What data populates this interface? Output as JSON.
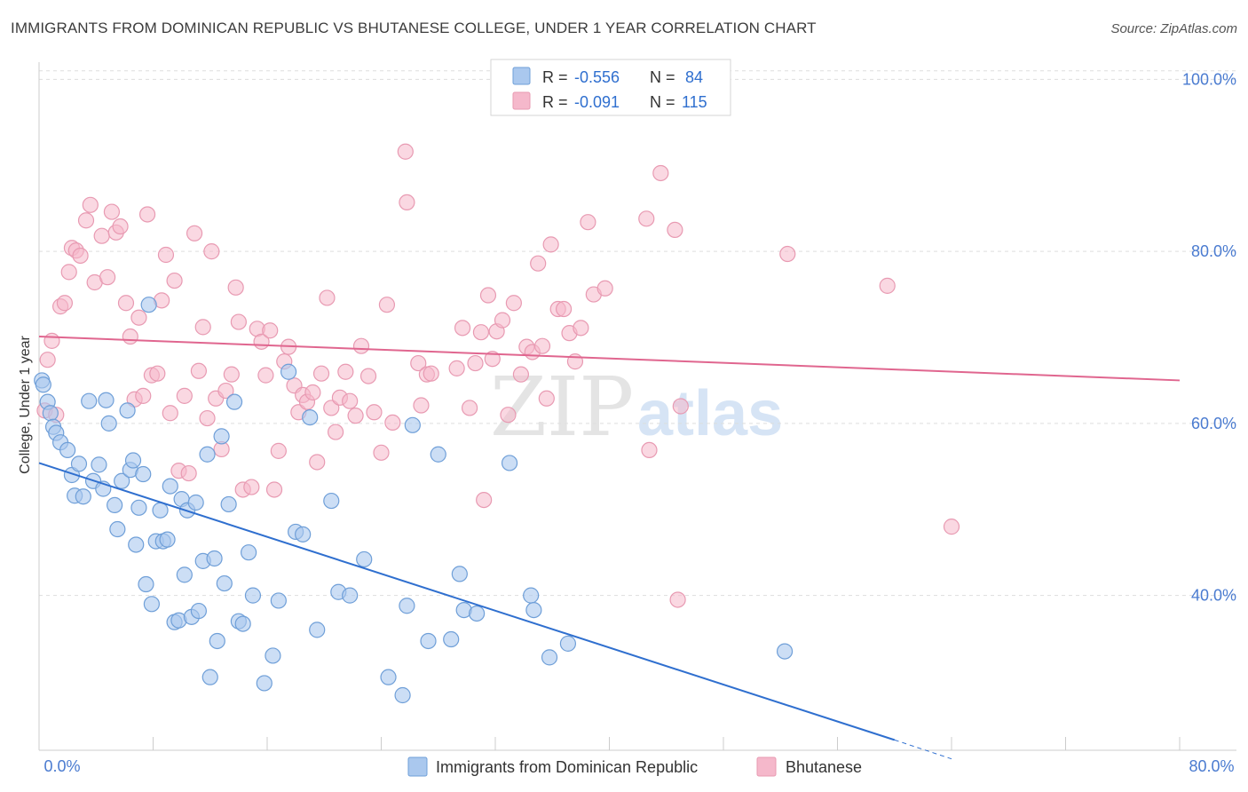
{
  "header": {
    "title": "IMMIGRANTS FROM DOMINICAN REPUBLIC VS BHUTANESE COLLEGE, UNDER 1 YEAR CORRELATION CHART",
    "source": "Source: ZipAtlas.com"
  },
  "watermark": {
    "zip": "ZIP",
    "atlas": "atlas"
  },
  "stats": {
    "blue": {
      "r_label": "R =",
      "r_value": "-0.556",
      "n_label": "N =",
      "n_value": "84"
    },
    "pink": {
      "r_label": "R =",
      "r_value": "-0.091",
      "n_label": "N =",
      "n_value": "115"
    }
  },
  "colors": {
    "blue_fill": "#aac8ee",
    "blue_stroke": "#6f9fd8",
    "blue_line": "#2f6fcf",
    "pink_fill": "#f5b8cb",
    "pink_stroke": "#e89ab2",
    "pink_line": "#e0668f",
    "tick_label": "#4a7bd0",
    "grid": "#dddddd"
  },
  "chart_data": {
    "type": "scatter",
    "title": "IMMIGRANTS FROM DOMINICAN REPUBLIC VS BHUTANESE COLLEGE, UNDER 1 YEAR CORRELATION CHART",
    "xlabel": "",
    "ylabel": "College, Under 1 year",
    "xlim": [
      0,
      80
    ],
    "ylim": [
      22,
      102
    ],
    "x_tick_labels": [
      "0.0%",
      "80.0%"
    ],
    "y_ticks": [
      40,
      60,
      80,
      100
    ],
    "y_tick_labels": [
      "40.0%",
      "60.0%",
      "80.0%",
      "100.0%"
    ],
    "grid": "horizontal dashed",
    "legend_position": "bottom",
    "series": [
      {
        "name": "Immigrants from Dominican Republic",
        "color": "#aac8ee",
        "trend": {
          "x": [
            0,
            60
          ],
          "y": [
            55.4,
            23.2
          ],
          "dashed_to": [
            64,
            21.0
          ]
        },
        "points": [
          [
            0.2,
            65.0
          ],
          [
            0.3,
            64.5
          ],
          [
            0.6,
            62.5
          ],
          [
            0.8,
            61.2
          ],
          [
            1.0,
            59.6
          ],
          [
            1.2,
            58.9
          ],
          [
            1.5,
            57.8
          ],
          [
            2.0,
            56.9
          ],
          [
            2.3,
            54.0
          ],
          [
            2.5,
            51.6
          ],
          [
            2.8,
            55.3
          ],
          [
            3.1,
            51.5
          ],
          [
            3.5,
            62.6
          ],
          [
            3.8,
            53.3
          ],
          [
            4.2,
            55.2
          ],
          [
            4.5,
            52.4
          ],
          [
            4.7,
            62.7
          ],
          [
            4.9,
            60.0
          ],
          [
            5.3,
            50.5
          ],
          [
            5.5,
            47.7
          ],
          [
            5.8,
            53.3
          ],
          [
            6.2,
            61.5
          ],
          [
            6.4,
            54.6
          ],
          [
            6.6,
            55.7
          ],
          [
            6.8,
            45.9
          ],
          [
            7.0,
            50.2
          ],
          [
            7.3,
            54.1
          ],
          [
            7.5,
            41.3
          ],
          [
            7.7,
            73.8
          ],
          [
            7.9,
            39.0
          ],
          [
            8.2,
            46.3
          ],
          [
            8.5,
            49.9
          ],
          [
            8.7,
            46.3
          ],
          [
            9.0,
            46.5
          ],
          [
            9.2,
            52.7
          ],
          [
            9.5,
            36.9
          ],
          [
            9.8,
            37.1
          ],
          [
            10.0,
            51.2
          ],
          [
            10.2,
            42.4
          ],
          [
            10.4,
            49.9
          ],
          [
            10.7,
            37.5
          ],
          [
            11.0,
            50.8
          ],
          [
            11.2,
            38.2
          ],
          [
            11.5,
            44.0
          ],
          [
            11.8,
            56.4
          ],
          [
            12.0,
            30.5
          ],
          [
            12.3,
            44.3
          ],
          [
            12.5,
            34.7
          ],
          [
            12.8,
            58.5
          ],
          [
            13.0,
            41.4
          ],
          [
            13.3,
            50.6
          ],
          [
            13.7,
            62.5
          ],
          [
            14.0,
            37.0
          ],
          [
            14.3,
            36.7
          ],
          [
            14.7,
            45.0
          ],
          [
            15.0,
            40.0
          ],
          [
            15.8,
            29.8
          ],
          [
            16.4,
            33.0
          ],
          [
            16.8,
            39.4
          ],
          [
            17.5,
            66.0
          ],
          [
            18.0,
            47.4
          ],
          [
            18.5,
            47.1
          ],
          [
            19.0,
            60.7
          ],
          [
            19.5,
            36.0
          ],
          [
            20.5,
            51.0
          ],
          [
            21.0,
            40.4
          ],
          [
            21.8,
            40.0
          ],
          [
            22.8,
            44.2
          ],
          [
            24.5,
            30.5
          ],
          [
            25.5,
            28.4
          ],
          [
            25.8,
            38.8
          ],
          [
            26.2,
            59.8
          ],
          [
            27.3,
            34.7
          ],
          [
            28.0,
            56.4
          ],
          [
            28.9,
            34.9
          ],
          [
            29.5,
            42.5
          ],
          [
            29.8,
            38.3
          ],
          [
            30.7,
            37.9
          ],
          [
            33.0,
            55.4
          ],
          [
            34.5,
            40.0
          ],
          [
            34.7,
            38.3
          ],
          [
            35.8,
            32.8
          ],
          [
            37.1,
            34.4
          ],
          [
            52.3,
            33.5
          ]
        ]
      },
      {
        "name": "Bhutanese",
        "color": "#f5b8cb",
        "trend": {
          "x": [
            0,
            80
          ],
          "y": [
            70.1,
            65.0
          ]
        },
        "points": [
          [
            0.4,
            61.5
          ],
          [
            0.6,
            67.4
          ],
          [
            0.9,
            69.6
          ],
          [
            1.2,
            61.0
          ],
          [
            1.5,
            73.6
          ],
          [
            1.8,
            74.0
          ],
          [
            2.1,
            77.6
          ],
          [
            2.3,
            80.4
          ],
          [
            2.6,
            80.1
          ],
          [
            2.9,
            79.5
          ],
          [
            3.3,
            83.6
          ],
          [
            3.6,
            85.4
          ],
          [
            3.9,
            76.4
          ],
          [
            4.4,
            81.8
          ],
          [
            4.8,
            77.0
          ],
          [
            5.1,
            84.6
          ],
          [
            5.4,
            82.2
          ],
          [
            5.7,
            82.9
          ],
          [
            6.1,
            74.0
          ],
          [
            6.4,
            70.1
          ],
          [
            6.7,
            62.8
          ],
          [
            7.0,
            72.3
          ],
          [
            7.3,
            63.2
          ],
          [
            7.6,
            84.3
          ],
          [
            7.9,
            65.6
          ],
          [
            8.3,
            65.8
          ],
          [
            8.6,
            74.3
          ],
          [
            8.9,
            79.6
          ],
          [
            9.2,
            61.2
          ],
          [
            9.5,
            76.6
          ],
          [
            9.8,
            54.5
          ],
          [
            10.2,
            63.2
          ],
          [
            10.5,
            54.2
          ],
          [
            10.9,
            82.1
          ],
          [
            11.2,
            66.1
          ],
          [
            11.5,
            71.2
          ],
          [
            11.8,
            60.6
          ],
          [
            12.1,
            80.0
          ],
          [
            12.4,
            62.9
          ],
          [
            12.8,
            57.0
          ],
          [
            13.1,
            63.8
          ],
          [
            13.5,
            65.7
          ],
          [
            13.8,
            75.8
          ],
          [
            14.0,
            71.8
          ],
          [
            14.3,
            52.3
          ],
          [
            14.9,
            52.6
          ],
          [
            15.3,
            71.0
          ],
          [
            15.6,
            69.5
          ],
          [
            15.9,
            65.6
          ],
          [
            16.2,
            70.8
          ],
          [
            16.5,
            52.3
          ],
          [
            16.8,
            56.8
          ],
          [
            17.2,
            67.2
          ],
          [
            17.5,
            68.9
          ],
          [
            17.9,
            64.4
          ],
          [
            18.2,
            61.3
          ],
          [
            18.5,
            63.3
          ],
          [
            18.8,
            62.5
          ],
          [
            19.2,
            63.6
          ],
          [
            19.5,
            55.5
          ],
          [
            19.8,
            65.8
          ],
          [
            20.2,
            74.6
          ],
          [
            20.5,
            61.8
          ],
          [
            20.8,
            59.0
          ],
          [
            21.1,
            63.0
          ],
          [
            21.5,
            66.0
          ],
          [
            21.8,
            62.6
          ],
          [
            22.2,
            60.9
          ],
          [
            22.6,
            69.0
          ],
          [
            23.1,
            65.5
          ],
          [
            23.5,
            61.3
          ],
          [
            24.0,
            56.6
          ],
          [
            24.4,
            73.8
          ],
          [
            24.8,
            60.1
          ],
          [
            25.7,
            91.6
          ],
          [
            25.8,
            85.7
          ],
          [
            26.6,
            67.0
          ],
          [
            26.8,
            62.1
          ],
          [
            27.2,
            65.7
          ],
          [
            27.5,
            65.8
          ],
          [
            29.3,
            66.4
          ],
          [
            29.7,
            71.1
          ],
          [
            30.2,
            61.8
          ],
          [
            30.6,
            67.0
          ],
          [
            31.0,
            70.6
          ],
          [
            31.2,
            51.1
          ],
          [
            31.5,
            74.9
          ],
          [
            31.8,
            67.5
          ],
          [
            32.1,
            70.7
          ],
          [
            32.5,
            72.0
          ],
          [
            32.9,
            61.0
          ],
          [
            33.3,
            74.0
          ],
          [
            33.8,
            65.7
          ],
          [
            34.2,
            68.9
          ],
          [
            34.6,
            68.3
          ],
          [
            35.0,
            78.6
          ],
          [
            35.3,
            69.0
          ],
          [
            35.6,
            62.9
          ],
          [
            35.9,
            80.8
          ],
          [
            36.4,
            73.3
          ],
          [
            36.8,
            73.3
          ],
          [
            37.2,
            70.5
          ],
          [
            37.6,
            67.2
          ],
          [
            38.0,
            71.1
          ],
          [
            38.5,
            83.4
          ],
          [
            38.9,
            75.0
          ],
          [
            39.7,
            75.7
          ],
          [
            42.6,
            83.8
          ],
          [
            42.8,
            56.9
          ],
          [
            43.6,
            89.1
          ],
          [
            44.6,
            82.5
          ],
          [
            44.8,
            39.5
          ],
          [
            45.0,
            62.0
          ],
          [
            52.5,
            79.7
          ],
          [
            59.5,
            76.0
          ],
          [
            64.0,
            48.0
          ]
        ]
      }
    ]
  },
  "legend": {
    "blue_label": "Immigrants from Dominican Republic",
    "pink_label": "Bhutanese"
  }
}
